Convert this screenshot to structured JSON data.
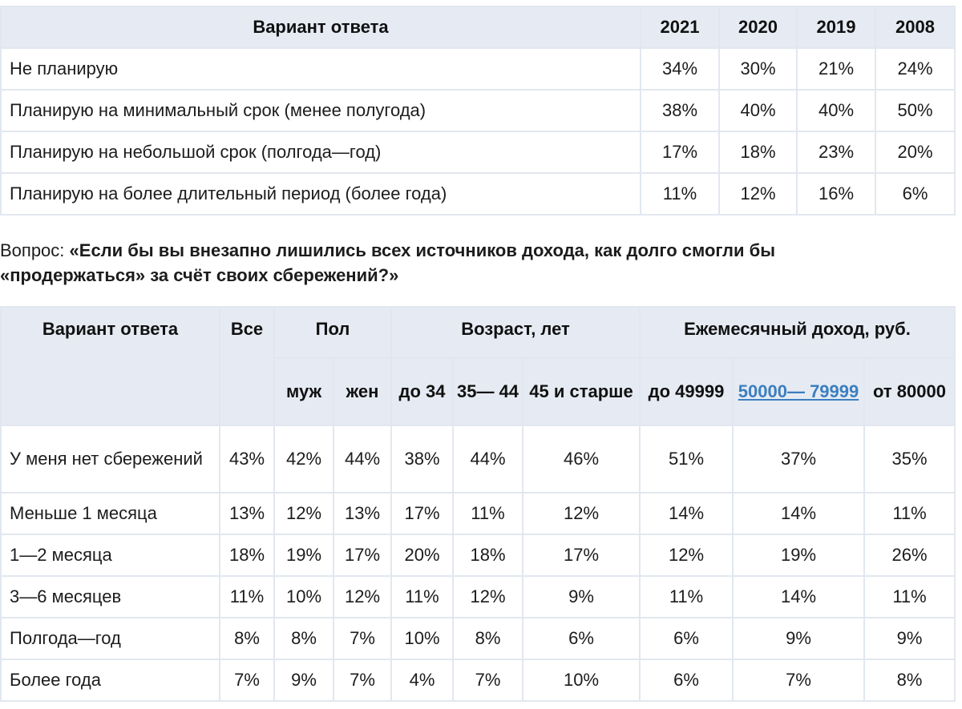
{
  "table1": {
    "header": {
      "label": "Вариант ответа",
      "years": [
        "2021",
        "2020",
        "2019",
        "2008"
      ]
    },
    "rows": [
      {
        "label": "Не планирую",
        "values": [
          "34%",
          "30%",
          "21%",
          "24%"
        ]
      },
      {
        "label": "Планирую на минимальный срок (менее полугода)",
        "values": [
          "38%",
          "40%",
          "40%",
          "50%"
        ]
      },
      {
        "label": "Планирую на небольшой срок (полгода—год)",
        "values": [
          "17%",
          "18%",
          "23%",
          "20%"
        ]
      },
      {
        "label": "Планирую на более длительный период (более года)",
        "values": [
          "11%",
          "12%",
          "16%",
          "6%"
        ]
      }
    ]
  },
  "question": {
    "label": "Вопрос: ",
    "text": "«Если бы вы внезапно лишились всех источников дохода, как долго смогли бы «продержаться» за счёт своих сбережений?»"
  },
  "table2": {
    "header": {
      "answer": "Вариант ответа",
      "all": "Все",
      "gender": "Пол",
      "age": "Возраст, лет",
      "income": "Ежемесячный доход, руб.",
      "sub": {
        "male": "муж",
        "female": "жен",
        "age1": "до 34",
        "age2": "35— 44",
        "age3": "45 и старше",
        "inc1": "до 49999",
        "inc2": "50000— 79999",
        "inc3": "от 80000"
      }
    },
    "rows": [
      {
        "label": "У меня нет сбережений",
        "values": [
          "43%",
          "42%",
          "44%",
          "38%",
          "44%",
          "46%",
          "51%",
          "37%",
          "35%"
        ]
      },
      {
        "label": "Меньше 1 месяца",
        "values": [
          "13%",
          "12%",
          "13%",
          "17%",
          "11%",
          "12%",
          "14%",
          "14%",
          "11%"
        ]
      },
      {
        "label": "1—2 месяца",
        "values": [
          "18%",
          "19%",
          "17%",
          "20%",
          "18%",
          "17%",
          "12%",
          "19%",
          "26%"
        ]
      },
      {
        "label": "3—6 месяцев",
        "values": [
          "11%",
          "10%",
          "12%",
          "11%",
          "12%",
          "9%",
          "11%",
          "14%",
          "11%"
        ]
      },
      {
        "label": "Полгода—год",
        "values": [
          "8%",
          "8%",
          "7%",
          "10%",
          "8%",
          "6%",
          "6%",
          "9%",
          "9%"
        ]
      },
      {
        "label": "Более года",
        "values": [
          "7%",
          "9%",
          "7%",
          "4%",
          "7%",
          "10%",
          "6%",
          "7%",
          "8%"
        ]
      }
    ]
  },
  "colors": {
    "header_bg": "#e6ebf3",
    "border": "#e2e7ef",
    "link": "#3c7fc0"
  }
}
